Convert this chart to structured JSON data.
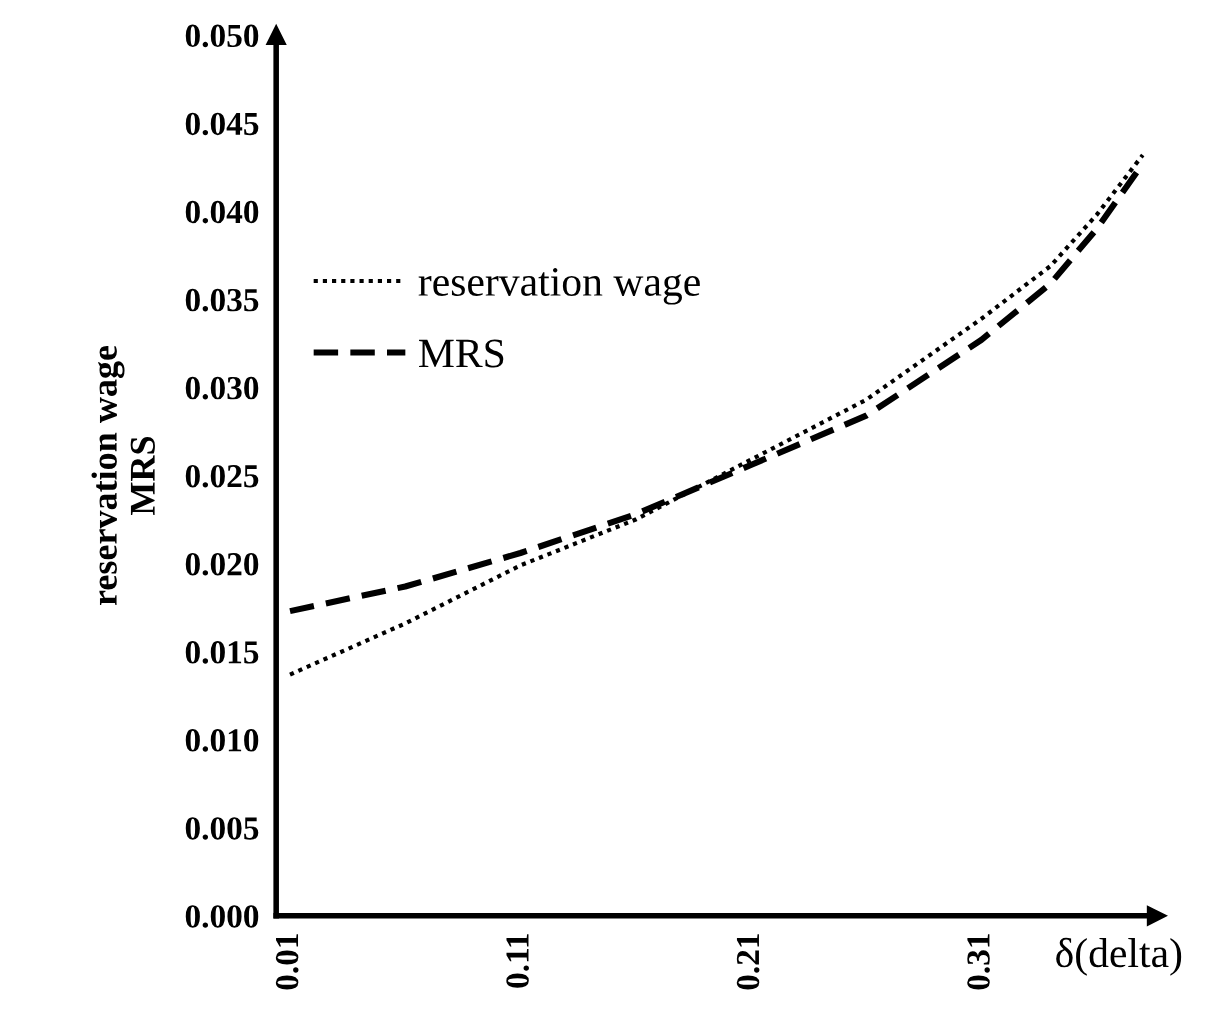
{
  "chart_data": {
    "type": "line",
    "xlabel": "δ(delta)",
    "ylabel": "reservation wage\nMRS",
    "x": [
      0.01,
      0.06,
      0.11,
      0.16,
      0.21,
      0.26,
      0.31,
      0.34,
      0.36,
      0.38
    ],
    "series": [
      {
        "name": "reservation wage",
        "color": "#000000",
        "line_style": "dotted",
        "values": [
          0.0137,
          0.0166,
          0.0199,
          0.0225,
          0.0259,
          0.0293,
          0.0339,
          0.0369,
          0.0398,
          0.0432
        ]
      },
      {
        "name": "MRS",
        "color": "#000000",
        "line_style": "dashed",
        "values": [
          0.0173,
          0.0187,
          0.0206,
          0.0228,
          0.0256,
          0.0284,
          0.0327,
          0.0359,
          0.039,
          0.0427
        ]
      }
    ],
    "xlim": [
      0.004,
      0.386
    ],
    "ylim": [
      0,
      0.05
    ],
    "xticks": [
      0.01,
      0.11,
      0.21,
      0.31
    ],
    "yticks": [
      {
        "value": 0,
        "label": "0.000"
      },
      {
        "value": 0.005,
        "label": "0.005"
      },
      {
        "value": 0.01,
        "label": "0.010"
      },
      {
        "value": 0.015,
        "label": "0.015"
      },
      {
        "value": 0.02,
        "label": "0.020"
      },
      {
        "value": 0.025,
        "label": "0.025"
      },
      {
        "value": 0.03,
        "label": "0.030"
      },
      {
        "value": 0.035,
        "label": "0.035"
      },
      {
        "value": 0.04,
        "label": "0.040"
      },
      {
        "value": 0.045,
        "label": "0.045"
      },
      {
        "value": 0.05,
        "label": "0.050"
      }
    ],
    "legend": "top left",
    "grid": false
  }
}
